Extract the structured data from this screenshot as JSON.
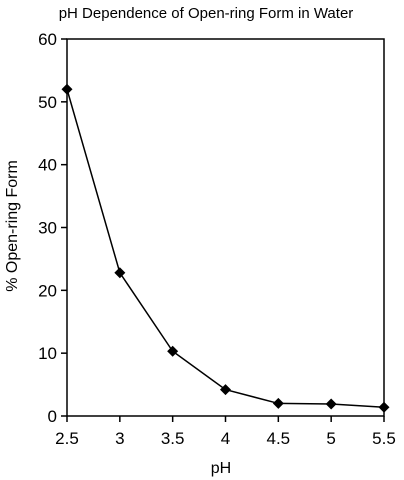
{
  "chart_data": {
    "type": "line",
    "title": "pH Dependence of Open-ring Form in Water",
    "xlabel": "pH",
    "ylabel": "% Open-ring Form",
    "xlim": [
      2.5,
      5.5
    ],
    "ylim": [
      0,
      60
    ],
    "xticks": [
      "2.5",
      "3",
      "3.5",
      "4",
      "4.5",
      "5",
      "5.5"
    ],
    "yticks": [
      "0",
      "10",
      "20",
      "30",
      "40",
      "50",
      "60"
    ],
    "grid": false,
    "marker": "diamond",
    "series": [
      {
        "x": [
          2.5,
          3.0,
          3.5,
          4.0,
          4.5,
          5.0,
          5.5
        ],
        "y": [
          52.0,
          22.8,
          10.3,
          4.2,
          2.0,
          1.9,
          1.4
        ],
        "color": "#000000"
      }
    ]
  }
}
